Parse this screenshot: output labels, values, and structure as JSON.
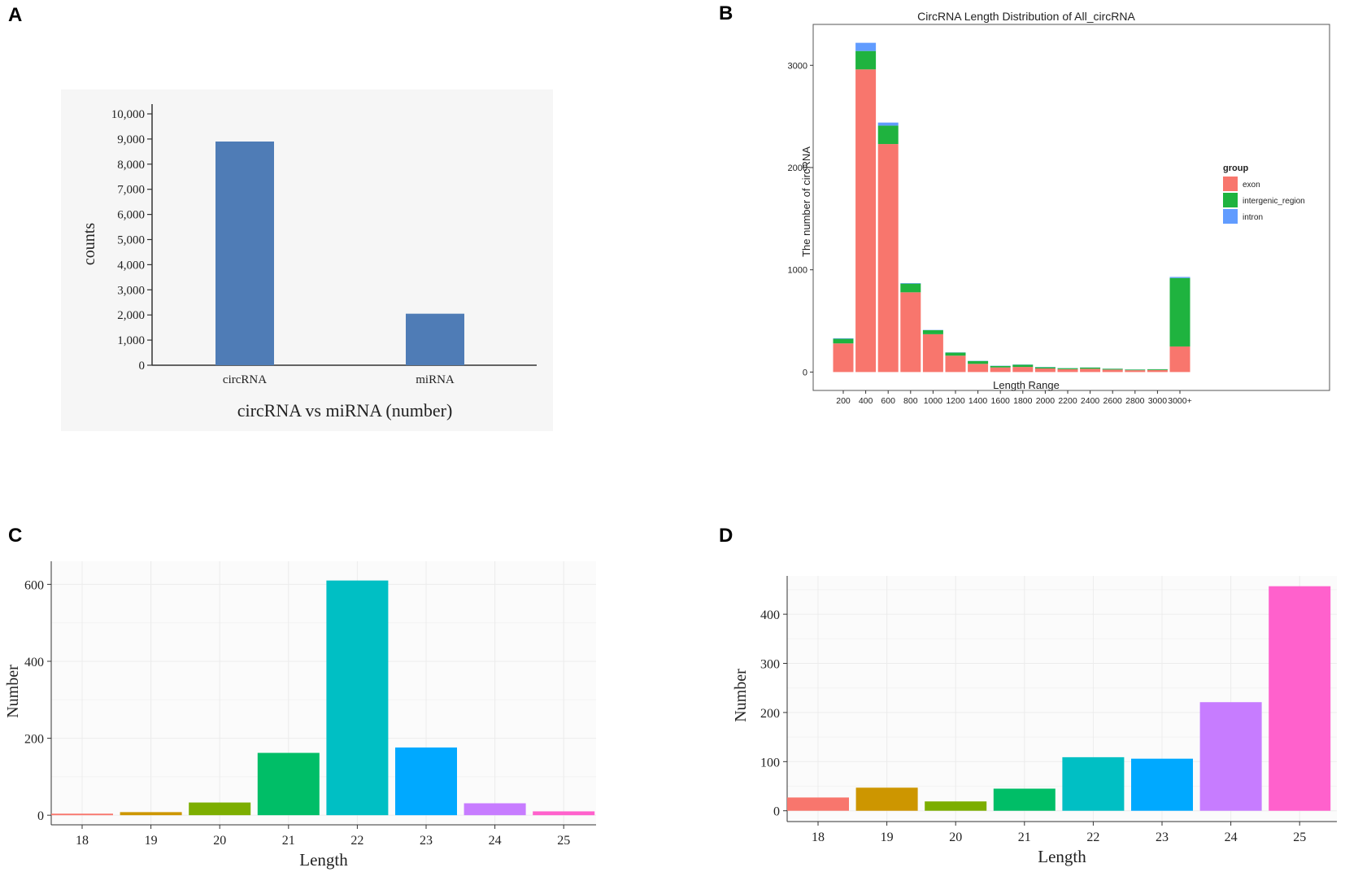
{
  "panel_labels": [
    "A",
    "B",
    "C",
    "D"
  ],
  "colors": {
    "bar_blue": "#4f7cb6",
    "exon": "#f8766d",
    "intergenic_region": "#1fb33f",
    "intron": "#619cff",
    "panel_c": [
      "#f8766d",
      "#cd9600",
      "#7cae00",
      "#00be67",
      "#00bfc4",
      "#00a9ff",
      "#c77cff",
      "#ff61cc"
    ],
    "panel_d": [
      "#f8766d",
      "#cd9600",
      "#7cae00",
      "#00be67",
      "#00bfc4",
      "#00a9ff",
      "#c77cff",
      "#ff61cc"
    ]
  },
  "chart_data": [
    {
      "id": "A",
      "type": "bar",
      "categories": [
        "circRNA",
        "miRNA"
      ],
      "values": [
        8900,
        2050
      ],
      "title": "",
      "xlabel": "circRNA vs miRNA (number)",
      "ylabel": "counts",
      "ylim": [
        0,
        10000
      ],
      "yticks": [
        "0",
        "1,000",
        "2,000",
        "3,000",
        "4,000",
        "5,000",
        "6,000",
        "7,000",
        "8,000",
        "9,000",
        "10,000"
      ],
      "ytick_values": [
        0,
        1000,
        2000,
        3000,
        4000,
        5000,
        6000,
        7000,
        8000,
        9000,
        10000
      ]
    },
    {
      "id": "B",
      "type": "bar",
      "stacked": true,
      "title": "CircRNA Length Distribution of All_circRNA",
      "xlabel": "Length Range",
      "ylabel": "The number of circRNA",
      "categories": [
        "200",
        "400",
        "600",
        "800",
        "1000",
        "1200",
        "1400",
        "1600",
        "1800",
        "2000",
        "2200",
        "2400",
        "2600",
        "2800",
        "3000",
        "3000+"
      ],
      "series": [
        {
          "name": "exon",
          "values": [
            280,
            2960,
            2230,
            780,
            370,
            160,
            80,
            45,
            50,
            35,
            28,
            32,
            24,
            18,
            20,
            250
          ]
        },
        {
          "name": "intergenic_region",
          "values": [
            45,
            180,
            180,
            85,
            40,
            30,
            28,
            15,
            22,
            12,
            10,
            12,
            8,
            6,
            7,
            670
          ]
        },
        {
          "name": "intron",
          "values": [
            5,
            80,
            30,
            5,
            2,
            2,
            2,
            2,
            2,
            2,
            1,
            1,
            1,
            1,
            1,
            10
          ]
        }
      ],
      "ylim": [
        -180,
        3400
      ],
      "yticks": [
        0,
        1000,
        2000,
        3000
      ],
      "legend_title": "group",
      "legend_position": "right"
    },
    {
      "id": "C",
      "type": "bar",
      "categories": [
        "18",
        "19",
        "20",
        "21",
        "22",
        "23",
        "24",
        "25"
      ],
      "values": [
        4,
        8,
        33,
        162,
        610,
        176,
        31,
        10
      ],
      "xlabel": "Length",
      "ylabel": "Number",
      "ylim": [
        -25,
        660
      ],
      "yticks": [
        0,
        200,
        400,
        600
      ]
    },
    {
      "id": "D",
      "type": "bar",
      "categories": [
        "18",
        "19",
        "20",
        "21",
        "22",
        "23",
        "24",
        "25"
      ],
      "values": [
        27,
        47,
        19,
        45,
        109,
        106,
        221,
        457
      ],
      "xlabel": "Length",
      "ylabel": "Number",
      "ylim": [
        -22,
        478
      ],
      "yticks": [
        0,
        100,
        200,
        300,
        400
      ]
    }
  ]
}
